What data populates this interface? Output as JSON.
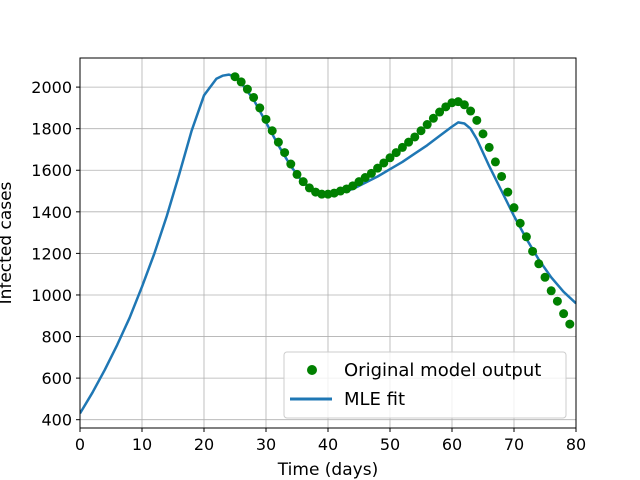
{
  "chart_data": {
    "type": "line",
    "title": "",
    "xlabel": "Time (days)",
    "ylabel": "Infected cases",
    "xlim": [
      0,
      80
    ],
    "ylim": [
      360,
      2140
    ],
    "xticks": [
      0,
      10,
      20,
      30,
      40,
      50,
      60,
      70,
      80
    ],
    "yticks": [
      400,
      600,
      800,
      1000,
      1200,
      1400,
      1600,
      1800,
      2000
    ],
    "grid": true,
    "legend": "lower-right",
    "series": [
      {
        "name": "Original model output",
        "kind": "scatter",
        "color": "#008000",
        "x": [
          25,
          26,
          27,
          28,
          29,
          30,
          31,
          32,
          33,
          34,
          35,
          36,
          37,
          38,
          39,
          40,
          41,
          42,
          43,
          44,
          45,
          46,
          47,
          48,
          49,
          50,
          51,
          52,
          53,
          54,
          55,
          56,
          57,
          58,
          59,
          60,
          61,
          62,
          63,
          64,
          65,
          66,
          67,
          68,
          69,
          70,
          71,
          72,
          73,
          74,
          75,
          76,
          77,
          78,
          79
        ],
        "y": [
          2050,
          2025,
          1990,
          1950,
          1900,
          1845,
          1790,
          1735,
          1685,
          1630,
          1580,
          1545,
          1515,
          1495,
          1485,
          1485,
          1490,
          1500,
          1510,
          1525,
          1545,
          1565,
          1585,
          1610,
          1635,
          1660,
          1685,
          1710,
          1735,
          1760,
          1790,
          1820,
          1850,
          1880,
          1905,
          1925,
          1930,
          1915,
          1885,
          1840,
          1775,
          1710,
          1640,
          1570,
          1495,
          1420,
          1345,
          1280,
          1210,
          1150,
          1085,
          1020,
          970,
          910,
          860
        ]
      },
      {
        "name": "MLE fit",
        "kind": "line",
        "color": "#1f77b4",
        "x": [
          0,
          2,
          4,
          6,
          8,
          10,
          12,
          14,
          16,
          18,
          20,
          22,
          23,
          24,
          25,
          26,
          28,
          30,
          32,
          34,
          36,
          38,
          40,
          42,
          44,
          46,
          48,
          50,
          52,
          54,
          56,
          58,
          60,
          61,
          62,
          63,
          64,
          66,
          68,
          70,
          72,
          74,
          76,
          78,
          80
        ],
        "y": [
          430,
          530,
          640,
          760,
          890,
          1040,
          1200,
          1380,
          1580,
          1790,
          1960,
          2040,
          2055,
          2060,
          2050,
          2020,
          1940,
          1830,
          1720,
          1620,
          1540,
          1495,
          1480,
          1490,
          1510,
          1540,
          1570,
          1605,
          1640,
          1680,
          1720,
          1765,
          1810,
          1830,
          1825,
          1800,
          1750,
          1620,
          1500,
          1380,
          1270,
          1170,
          1085,
          1015,
          960
        ]
      }
    ]
  }
}
